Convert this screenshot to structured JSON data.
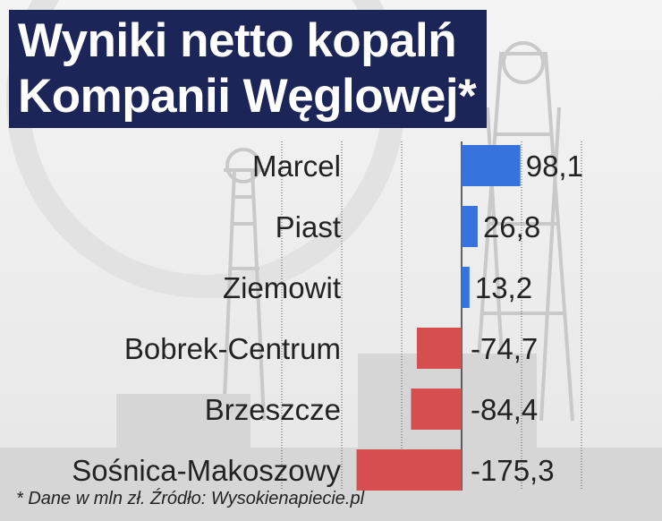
{
  "title": {
    "line1": "Wyniki netto kopalń",
    "line2": "Kompanii Węglowej*"
  },
  "footnote": "* Dane w mln zł. Źródło: Wysokienapiecie.pl",
  "colors": {
    "positive": "#3773dc",
    "negative": "#d64e4e",
    "title_bg": "#1c2558",
    "text": "#222222"
  },
  "chart_data": {
    "type": "bar",
    "orientation": "horizontal",
    "categories": [
      "Marcel",
      "Piast",
      "Ziemowit",
      "Bobrek-Centrum",
      "Brzeszcze",
      "Sośnica-Makoszowy"
    ],
    "values": [
      98.1,
      26.8,
      13.2,
      -74.7,
      -84.4,
      -175.3
    ],
    "value_labels": [
      "98,1",
      "26,8",
      "13,2",
      "-74,7",
      "-84,4",
      "-175,3"
    ],
    "title": "Wyniki netto kopalń Kompanii Węglowej*",
    "xlim": [
      -300,
      200
    ],
    "grid": true
  }
}
